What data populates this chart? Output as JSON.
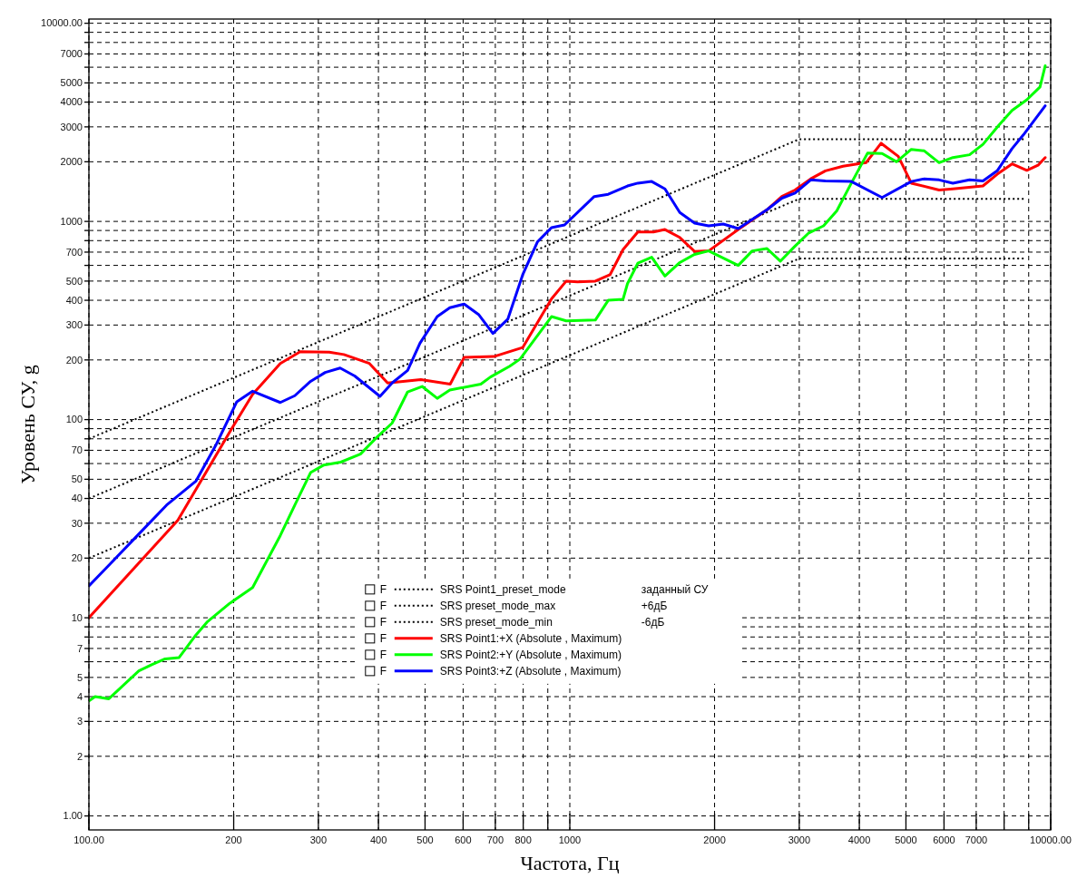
{
  "chart_data": {
    "type": "line",
    "xlabel": "Частота, Гц",
    "ylabel": "Уровень СУ, g",
    "log": "xy",
    "grid": true,
    "legend": "bottom",
    "xlim": [
      100,
      10000
    ],
    "ylim": [
      0.85,
      10500
    ],
    "xticks": [
      {
        "value": 100,
        "label": "100.00"
      },
      200,
      300,
      400,
      500,
      600,
      700,
      800,
      {
        "value": 900,
        "label": null
      },
      1000,
      2000,
      3000,
      4000,
      5000,
      6000,
      7000,
      {
        "value": 8000,
        "label": null
      },
      {
        "value": 9000,
        "label": null
      },
      {
        "value": 10000,
        "label": "10000.00"
      }
    ],
    "yticks": [
      {
        "value": 1,
        "label": "1.00"
      },
      2,
      3,
      4,
      5,
      {
        "value": 6,
        "label": null
      },
      7,
      {
        "value": 8,
        "label": null
      },
      {
        "value": 9,
        "label": null
      },
      10,
      20,
      30,
      40,
      50,
      {
        "value": 60,
        "label": null
      },
      70,
      {
        "value": 80,
        "label": null
      },
      {
        "value": 90,
        "label": null
      },
      100,
      200,
      300,
      400,
      500,
      {
        "value": 600,
        "label": null
      },
      700,
      {
        "value": 800,
        "label": null
      },
      {
        "value": 900,
        "label": null
      },
      1000,
      2000,
      3000,
      4000,
      5000,
      {
        "value": 6000,
        "label": null
      },
      7000,
      {
        "value": 8000,
        "label": null
      },
      {
        "value": 9000,
        "label": null
      },
      {
        "value": 10000,
        "label": "10000.00"
      }
    ],
    "series": [
      {
        "name": "SRS Point1_preset_mode",
        "color": "#000000",
        "line_style": "dotted",
        "x": [
          100,
          3000,
          8800
        ],
        "values": [
          40,
          1300,
          1300
        ]
      },
      {
        "name": "SRS preset_mode_max",
        "color": "#000000",
        "line_style": "dotted",
        "x": [
          100,
          3000,
          8800
        ],
        "values": [
          80,
          2600,
          2600
        ]
      },
      {
        "name": "SRS preset_mode_min",
        "color": "#000000",
        "line_style": "dotted",
        "x": [
          100,
          3000,
          8800
        ],
        "values": [
          20,
          650,
          650
        ]
      },
      {
        "name": "SRS Point1:+X (Absolute , Maximum)",
        "color": "#ff0000",
        "x": [
          100,
          153,
          197,
          219,
          250,
          275,
          316,
          339,
          383,
          418,
          490,
          564,
          603,
          695,
          798,
          916,
          983,
          1038,
          1130,
          1212,
          1290,
          1385,
          1493,
          1577,
          1693,
          1818,
          1944,
          2240,
          2570,
          2760,
          2940,
          3170,
          3400,
          3700,
          3960,
          4130,
          4440,
          4820,
          5130,
          5860,
          6260,
          7230,
          7740,
          8310,
          8920,
          9410,
          9740
        ],
        "values": [
          10,
          31,
          88,
          134,
          192,
          220,
          219,
          213,
          192,
          153,
          159,
          151,
          206,
          208,
          231,
          407,
          500,
          495,
          500,
          538,
          720,
          885,
          885,
          910,
          830,
          705,
          710,
          910,
          1145,
          1335,
          1440,
          1640,
          1800,
          1900,
          1950,
          1980,
          2480,
          2130,
          1560,
          1440,
          1460,
          1510,
          1730,
          1950,
          1810,
          1920,
          2100
        ]
      },
      {
        "name": "SRS Point2:+Y (Absolute , Maximum)",
        "color": "#00ff00",
        "x": [
          100,
          103,
          110,
          127,
          135,
          144,
          154,
          167,
          176,
          196,
          219,
          250,
          268,
          289,
          308,
          334,
          367,
          396,
          427,
          460,
          493,
          530,
          563,
          653,
          684,
          750,
          788,
          916,
          983,
          1130,
          1202,
          1290,
          1318,
          1385,
          1480,
          1577,
          1693,
          1818,
          1944,
          2240,
          2395,
          2570,
          2740,
          2940,
          3140,
          3370,
          3590,
          3850,
          4160,
          4460,
          4780,
          5130,
          5460,
          5860,
          6260,
          6780,
          7230,
          7810,
          8310,
          8920,
          9500,
          9740
        ],
        "values": [
          3.8,
          4.0,
          3.9,
          5.4,
          5.8,
          6.2,
          6.3,
          8.2,
          9.5,
          11.8,
          14.2,
          26,
          37,
          54,
          59,
          61,
          67,
          81,
          96,
          138,
          147,
          128,
          141,
          151,
          164,
          186,
          202,
          331,
          315,
          318,
          400,
          404,
          485,
          616,
          660,
          530,
          620,
          682,
          710,
          600,
          710,
          730,
          630,
          750,
          875,
          950,
          1130,
          1560,
          2210,
          2200,
          2000,
          2310,
          2270,
          1980,
          2100,
          2170,
          2450,
          3070,
          3630,
          4110,
          4770,
          6100
        ]
      },
      {
        "name": "SRS Point3:+Z (Absolute , Maximum)",
        "color": "#0000ff",
        "x": [
          100,
          110,
          128,
          145,
          167,
          184,
          203,
          219,
          250,
          268,
          289,
          310,
          333,
          357,
          403,
          427,
          460,
          488,
          530,
          563,
          603,
          647,
          692,
          743,
          798,
          857,
          916,
          975,
          1124,
          1202,
          1318,
          1385,
          1480,
          1577,
          1693,
          1818,
          1944,
          2085,
          2240,
          2570,
          2760,
          2940,
          3170,
          3400,
          3850,
          4460,
          5130,
          5460,
          5860,
          6260,
          6780,
          7230,
          7740,
          8310,
          8770,
          9740
        ],
        "values": [
          14.5,
          18.4,
          27,
          37,
          49,
          75,
          123,
          139,
          122,
          132,
          156,
          173,
          182,
          166,
          131,
          153,
          177,
          243,
          331,
          367,
          383,
          338,
          272,
          321,
          538,
          790,
          930,
          960,
          1335,
          1370,
          1510,
          1560,
          1590,
          1460,
          1110,
          980,
          950,
          970,
          920,
          1145,
          1310,
          1390,
          1620,
          1600,
          1590,
          1320,
          1590,
          1640,
          1620,
          1560,
          1620,
          1600,
          1800,
          2330,
          2730,
          3830
        ]
      }
    ],
    "annotations": [
      "F",
      "F",
      "F",
      "F",
      "F",
      "F",
      "заданный СУ",
      "+6дБ",
      "-6дБ"
    ]
  }
}
